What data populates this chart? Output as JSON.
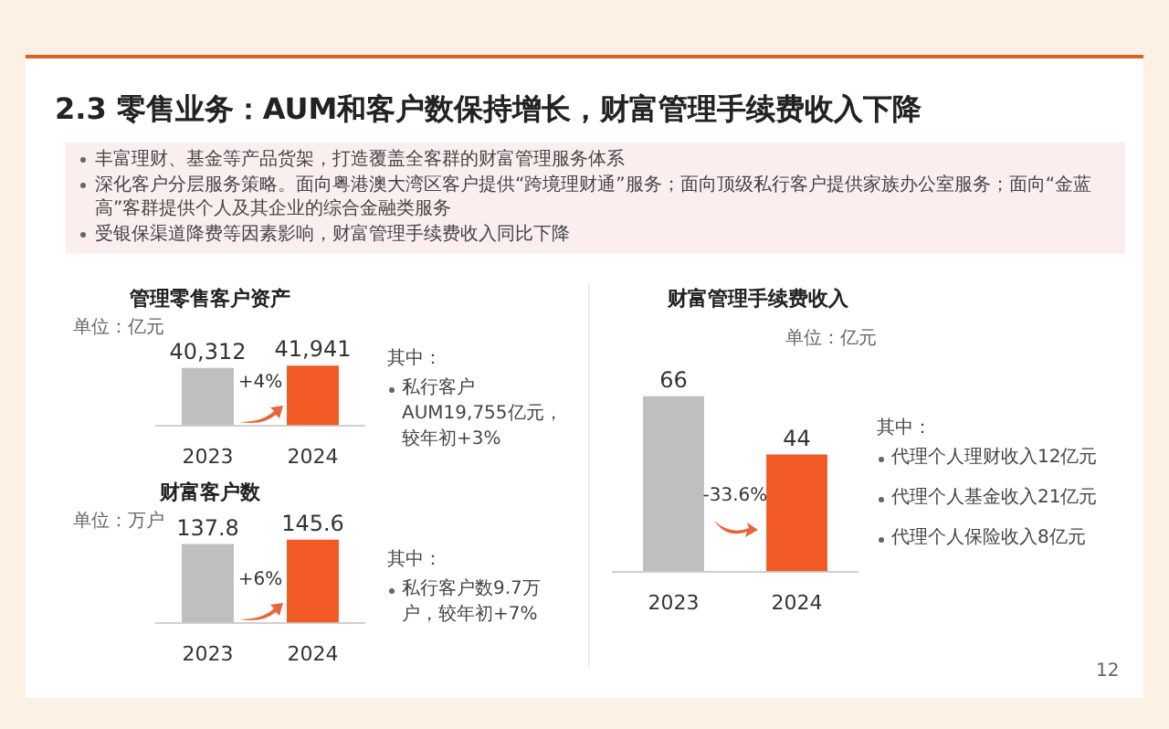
{
  "chart_data": [
    {
      "type": "other",
      "title": "2.3 零售业务：AUM和客户数保持增长，财富管理手续费收入下降",
      "annotations": [
        "丰富理财、基金等产品货架，打造覆盖全客群的财富管理服务体系",
        "深化客户分层服务策略。面向粤港澳大湾区客户提供“跨境理财通”服务；面向顶级私行客户提供家族办公室服务；面向“金蓝高”客群提供个人及其企业的综合金融类服务",
        "受银保渠道降费等因素影响，财富管理手续费收入同比下降",
        "12"
      ]
    },
    {
      "type": "bar",
      "title": "管理零售客户资产",
      "ylabel": "单位：亿元",
      "categories": [
        "2023",
        "2024"
      ],
      "values": [
        40312,
        41941
      ],
      "value_labels": [
        "40,312",
        "41,941"
      ],
      "colors": [
        "#bfbfbf",
        "#f15a24"
      ],
      "annotations": [
        "+4%",
        "其中：",
        "私行客户AUM19,755亿元，较年初+3%"
      ]
    },
    {
      "type": "bar",
      "title": "财富客户数",
      "ylabel": "单位：万户",
      "categories": [
        "2023",
        "2024"
      ],
      "values": [
        137.8,
        145.6
      ],
      "value_labels": [
        "137.8",
        "145.6"
      ],
      "colors": [
        "#bfbfbf",
        "#f15a24"
      ],
      "annotations": [
        "+6%",
        "其中：",
        "私行客户数9.7万户，较年初+7%"
      ]
    },
    {
      "type": "bar",
      "title": "财富管理手续费收入",
      "ylabel": "单位：亿元",
      "categories": [
        "2023",
        "2024"
      ],
      "values": [
        66,
        44
      ],
      "value_labels": [
        "66",
        "44"
      ],
      "colors": [
        "#bfbfbf",
        "#f15a24"
      ],
      "annotations": [
        "-33.6%",
        "其中：",
        "代理个人理财收入12亿元",
        "代理个人基金收入21亿元",
        "代理个人保险收入8亿元"
      ]
    }
  ]
}
